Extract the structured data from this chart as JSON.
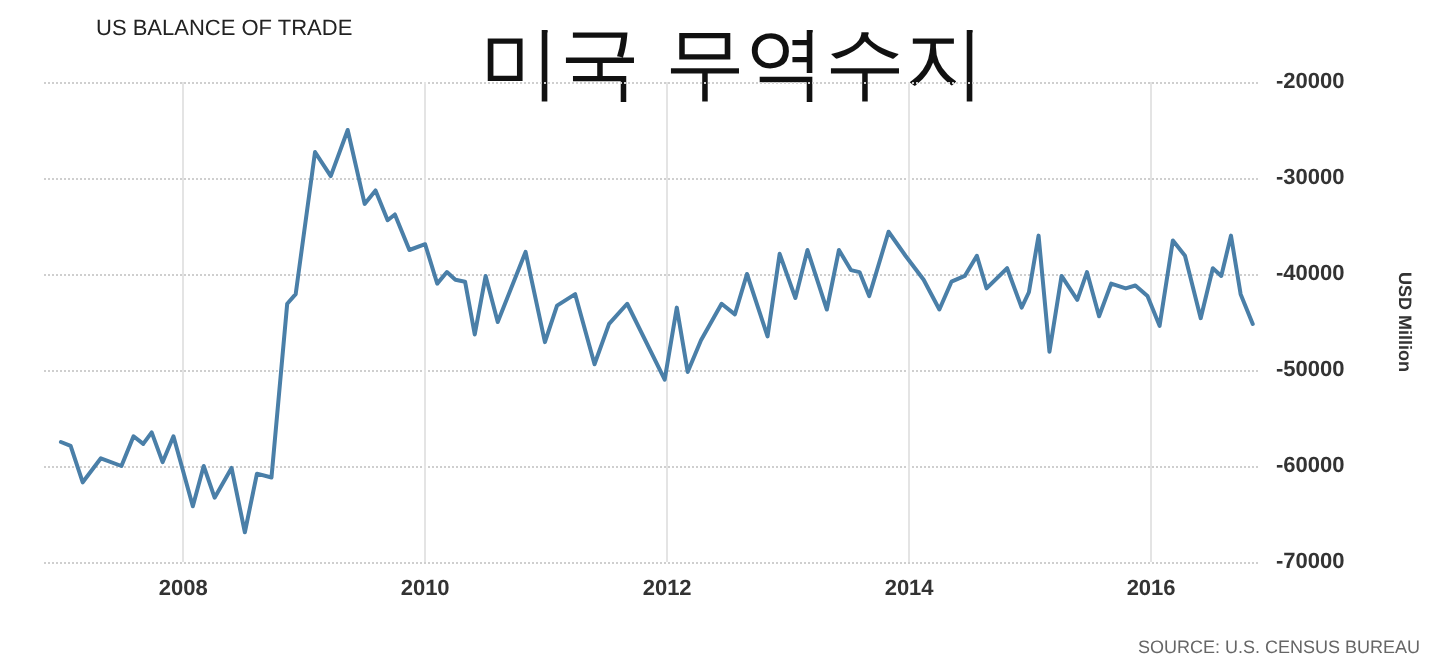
{
  "chart_data": {
    "type": "line",
    "title": "US BALANCE OF TRADE",
    "subtitle": "미국 무역수지",
    "ylabel": "USD Million",
    "annotations": [
      "SOURCE: U.S. CENSUS BUREAU"
    ],
    "x": [
      2006.99,
      2007.07,
      2007.17,
      2007.32,
      2007.49,
      2007.59,
      2007.67,
      2007.74,
      2007.83,
      2007.92,
      2008.08,
      2008.17,
      2008.26,
      2008.4,
      2008.51,
      2008.61,
      2008.73,
      2008.86,
      2008.93,
      2009.09,
      2009.22,
      2009.36,
      2009.5,
      2009.59,
      2009.69,
      2009.75,
      2009.87,
      2010.0,
      2010.1,
      2010.18,
      2010.25,
      2010.33,
      2010.41,
      2010.5,
      2010.6,
      2010.83,
      2010.99,
      2011.09,
      2011.24,
      2011.4,
      2011.52,
      2011.67,
      2011.98,
      2012.08,
      2012.17,
      2012.28,
      2012.45,
      2012.56,
      2012.66,
      2012.83,
      2012.93,
      2013.06,
      2013.16,
      2013.32,
      2013.42,
      2013.52,
      2013.59,
      2013.67,
      2013.83,
      2013.97,
      2014.12,
      2014.25,
      2014.35,
      2014.46,
      2014.56,
      2014.64,
      2014.81,
      2014.93,
      2014.99,
      2015.07,
      2015.16,
      2015.26,
      2015.39,
      2015.47,
      2015.57,
      2015.67,
      2015.79,
      2015.87,
      2015.97,
      2016.07,
      2016.18,
      2016.28,
      2016.41,
      2016.51,
      2016.58,
      2016.66,
      2016.74,
      2016.84
    ],
    "series": [
      {
        "color": "#4a7fa8",
        "values": [
          -57500,
          -57900,
          -61700,
          -59200,
          -60000,
          -56900,
          -57700,
          -56500,
          -59600,
          -56900,
          -64200,
          -60000,
          -63300,
          -60200,
          -66900,
          -60800,
          -61200,
          -43100,
          -42100,
          -27300,
          -29800,
          -25000,
          -32700,
          -31300,
          -34400,
          -33800,
          -37500,
          -36900,
          -41000,
          -39800,
          -40600,
          -40800,
          -46300,
          -40200,
          -45000,
          -37700,
          -47100,
          -43300,
          -42100,
          -49400,
          -45200,
          -43100,
          -51000,
          -43500,
          -50200,
          -46900,
          -43100,
          -44200,
          -40000,
          -46500,
          -37900,
          -42500,
          -37500,
          -43700,
          -37500,
          -39600,
          -39800,
          -42300,
          -35600,
          -38100,
          -40600,
          -43700,
          -40800,
          -40200,
          -38100,
          -41500,
          -39400,
          -43500,
          -41900,
          -36000,
          -48100,
          -40200,
          -42700,
          -39800,
          -44400,
          -41000,
          -41500,
          -41200,
          -42300,
          -45400,
          -36500,
          -38100,
          -44600,
          -39400,
          -40200,
          -36000,
          -42100,
          -45200
        ]
      }
    ],
    "xlim": [
      2006.85,
      2016.9
    ],
    "xticks": [
      2008,
      2010,
      2012,
      2014,
      2016
    ],
    "ylim": [
      -70000,
      -20000
    ],
    "yticks": [
      -70000,
      -60000,
      -50000,
      -40000,
      -30000,
      -20000
    ],
    "grid": true,
    "marker": "none",
    "line_style": "solid"
  }
}
